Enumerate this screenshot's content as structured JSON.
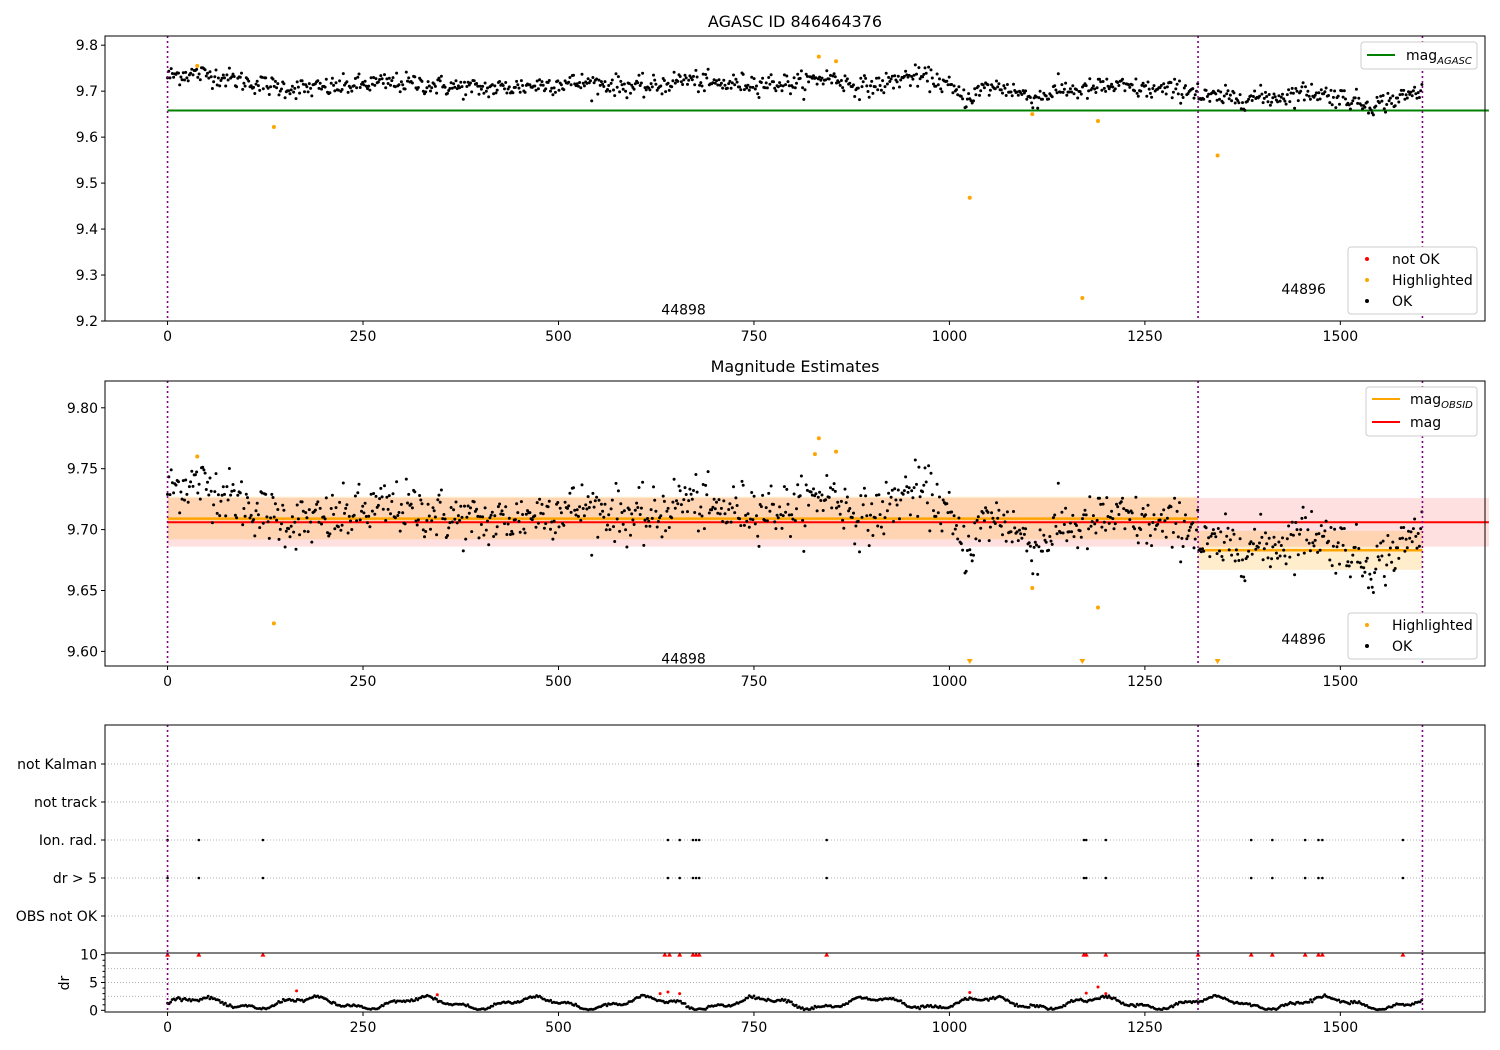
{
  "chart_data": [
    {
      "type": "scatter",
      "title": "AGASC ID 846464376",
      "xlim": [
        -80,
        1685
      ],
      "ylim": [
        9.2,
        9.82
      ],
      "xticks": [
        0,
        250,
        500,
        750,
        1000,
        1250,
        1500,
        1750
      ],
      "yticks": [
        9.2,
        9.3,
        9.4,
        9.5,
        9.6,
        9.7,
        9.8
      ],
      "vlines": [
        0,
        1318,
        1605
      ],
      "obsid_labels": [
        {
          "x": 660,
          "y": 9.225,
          "text": "44898"
        },
        {
          "x": 1453,
          "y": 9.27,
          "text": "44896"
        }
      ],
      "hline": {
        "name": "mag_AGASC",
        "value": 9.658,
        "color": "#008000"
      },
      "legend_upper": [
        {
          "label": "mag",
          "sub": "AGASC",
          "color": "#008000"
        }
      ],
      "legend_lower": [
        {
          "label": "not OK",
          "color": "#ff0000"
        },
        {
          "label": "Highlighted",
          "color": "#ffa500"
        },
        {
          "label": "OK",
          "color": "#000000"
        }
      ],
      "highlighted_points": [
        [
          38,
          9.755
        ],
        [
          136,
          9.622
        ],
        [
          833,
          9.775
        ],
        [
          855,
          9.765
        ],
        [
          1026,
          9.468
        ],
        [
          1106,
          9.65
        ],
        [
          1170,
          9.25
        ],
        [
          1190,
          9.635
        ],
        [
          1343,
          9.56
        ]
      ]
    },
    {
      "type": "scatter",
      "title": "Magnitude Estimates",
      "xlim": [
        -80,
        1685
      ],
      "ylim": [
        9.588,
        9.822
      ],
      "xticks": [
        0,
        250,
        500,
        750,
        1000,
        1250,
        1500,
        1750
      ],
      "yticks": [
        9.6,
        9.65,
        9.7,
        9.75,
        9.8
      ],
      "vlines": [
        0,
        1318,
        1605
      ],
      "obsid_labels": [
        {
          "x": 660,
          "y": 9.594,
          "text": "44898"
        },
        {
          "x": 1453,
          "y": 9.61,
          "text": "44896"
        }
      ],
      "mag": {
        "value": 9.706,
        "band": [
          9.686,
          9.726
        ],
        "xrange": [
          0,
          1690
        ],
        "color": "#ff0000"
      },
      "mag_obsid": [
        {
          "obsid": "44898",
          "x": [
            0,
            1318
          ],
          "value": 9.709,
          "band": [
            9.692,
            9.727
          ]
        },
        {
          "obsid": "44896",
          "x": [
            1318,
            1605
          ],
          "value": 9.683,
          "band": [
            9.667,
            9.699
          ]
        }
      ],
      "legend_upper": [
        {
          "label": "mag",
          "sub": "OBSID",
          "color": "#ffa500"
        },
        {
          "label": "mag",
          "sub": "",
          "color": "#ff0000"
        }
      ],
      "legend_lower": [
        {
          "label": "Highlighted",
          "color": "#ffa500"
        },
        {
          "label": "OK",
          "color": "#000000"
        }
      ],
      "highlighted_points": [
        [
          38,
          9.76
        ],
        [
          136,
          9.623
        ],
        [
          828,
          9.762
        ],
        [
          833,
          9.775
        ],
        [
          855,
          9.764
        ],
        [
          1106,
          9.652
        ],
        [
          1190,
          9.636
        ]
      ],
      "below_range_markers": [
        1026,
        1170,
        1343
      ]
    },
    {
      "type": "scatter",
      "categories": [
        "not Kalman",
        "not track",
        "Ion. rad.",
        "dr > 5",
        "OBS not OK"
      ],
      "xlim": [
        -80,
        1685
      ],
      "xticks": [
        0,
        250,
        500,
        750,
        1000,
        1250,
        1500,
        1750
      ],
      "vlines": [
        0,
        1318,
        1605
      ],
      "flag_points": {
        "not Kalman": [
          1318
        ],
        "not track": [],
        "Ion. rad.": [
          0,
          40,
          122,
          640,
          655,
          672,
          676,
          680,
          843,
          1172,
          1175,
          1200,
          1386,
          1413,
          1455,
          1472,
          1477,
          1580
        ],
        "dr > 5": [
          0,
          40,
          122,
          640,
          655,
          672,
          676,
          680,
          843,
          1172,
          1175,
          1200,
          1386,
          1413,
          1455,
          1472,
          1477,
          1580
        ],
        "OBS not OK": []
      }
    },
    {
      "type": "scatter",
      "ylabel": "dr",
      "xlim": [
        -80,
        1685
      ],
      "ylim": [
        -0.3,
        10.3
      ],
      "xticks": [
        0,
        250,
        500,
        750,
        1000,
        1250,
        1500,
        1750
      ],
      "yticks": [
        0,
        5,
        10
      ],
      "vlines": [
        0,
        1318,
        1605
      ],
      "dr_clipped_points": [
        0,
        40,
        122,
        636,
        642,
        655,
        672,
        676,
        680,
        843,
        1172,
        1175,
        1200,
        1318,
        1386,
        1413,
        1455,
        1472,
        1477,
        1580
      ],
      "red_points": [
        [
          165,
          3.5
        ],
        [
          345,
          2.8
        ],
        [
          630,
          3.0
        ],
        [
          640,
          3.3
        ],
        [
          655,
          3.0
        ],
        [
          1026,
          3.2
        ],
        [
          1175,
          3.1
        ],
        [
          1190,
          4.2
        ],
        [
          1200,
          3.0
        ]
      ]
    }
  ]
}
